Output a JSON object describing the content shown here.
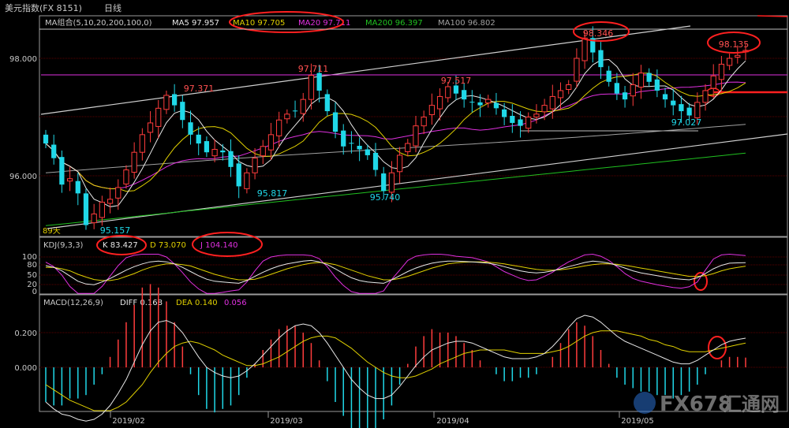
{
  "window": {
    "title": "美元指数(FX 8151)",
    "period": "日线"
  },
  "colors": {
    "background": "#000000",
    "grid": "#5a0000",
    "axis": "#9a9a9a",
    "up": "#ff3c3c",
    "down": "#20d8e8",
    "ma5": "#e8e8e8",
    "ma10": "#e0d000",
    "ma20": "#e030e0",
    "ma200": "#20c020",
    "ma100": "#a0a0a0",
    "k": "#e8e8e8",
    "d": "#e0d000",
    "j": "#e030e0",
    "annotation": "#ff2020",
    "label_red": "#ff5050",
    "label_cyan": "#20d8e8"
  },
  "main_panel": {
    "legend": {
      "title": "MA组合(5,10,20,200,100,0)",
      "ma5": "MA5 97.957",
      "ma10": "MA10 97.705",
      "ma20": "MA20 97.711",
      "ma200": "MA200 96.397",
      "ma100": "MA100 96.802"
    },
    "y_ticks": [
      "98.000",
      "96.000"
    ],
    "corner_label": "89天",
    "price_labels": [
      {
        "text": "97.371",
        "color": "red"
      },
      {
        "text": "97.711",
        "color": "red"
      },
      {
        "text": "97.517",
        "color": "red"
      },
      {
        "text": "98.346",
        "color": "red"
      },
      {
        "text": "98.135",
        "color": "red"
      },
      {
        "text": "95.817",
        "color": "cyan"
      },
      {
        "text": "95.740",
        "color": "cyan"
      },
      {
        "text": "97.027",
        "color": "cyan"
      },
      {
        "text": "95.157",
        "color": "cyan"
      }
    ]
  },
  "kdj_panel": {
    "legend": {
      "title": "KDJ(9,3,3)",
      "k": "K 83.427",
      "d": "D 73.070",
      "j": "J 104.140"
    },
    "y_ticks": [
      "100",
      "80",
      "50",
      "20",
      "0"
    ]
  },
  "macd_panel": {
    "legend": {
      "title": "MACD(12,26,9)",
      "diff": "DIFF 0.168",
      "dea": "DEA 0.140",
      "macd": "0.056"
    },
    "y_ticks": [
      "0.200",
      "0.000"
    ]
  },
  "x_axis": {
    "labels": [
      "2019/02",
      "2019/03",
      "2019/04",
      "2019/05"
    ]
  },
  "watermark": {
    "text": "FX678",
    "text2": "汇通网"
  },
  "chart_data": {
    "type": "candlestick",
    "title": "美元指数(FX 8151) 日线",
    "ylim": [
      95.0,
      98.6
    ],
    "x": {
      "start": "2019-01-10",
      "end": "2019-05-16",
      "labels": [
        "2019/02",
        "2019/03",
        "2019/04",
        "2019/05"
      ]
    },
    "close": [
      96.55,
      96.3,
      95.85,
      95.95,
      95.7,
      95.16,
      95.35,
      95.55,
      95.6,
      95.8,
      96.1,
      96.4,
      96.7,
      96.9,
      97.15,
      97.37,
      97.2,
      96.95,
      96.7,
      96.55,
      96.4,
      96.45,
      96.4,
      96.15,
      95.82,
      96.05,
      96.3,
      96.5,
      96.7,
      96.95,
      97.05,
      97.1,
      97.3,
      97.71,
      97.45,
      97.1,
      96.75,
      96.5,
      96.55,
      96.45,
      96.35,
      96.1,
      95.74,
      96.05,
      96.35,
      96.55,
      96.85,
      97.0,
      97.2,
      97.35,
      97.517,
      97.4,
      97.3,
      97.25,
      97.2,
      97.3,
      97.15,
      97.0,
      96.9,
      96.85,
      97.0,
      97.05,
      97.2,
      97.35,
      97.45,
      97.55,
      98.0,
      98.346,
      98.1,
      97.85,
      97.6,
      97.4,
      97.3,
      97.55,
      97.75,
      97.6,
      97.45,
      97.3,
      97.2,
      97.1,
      97.027,
      97.25,
      97.45,
      97.7,
      97.9,
      98.0,
      98.05,
      98.135
    ],
    "kdj": {
      "k": [
        75,
        70,
        60,
        45,
        30,
        22,
        20,
        28,
        38,
        50,
        62,
        72,
        80,
        86,
        88,
        86,
        80,
        70,
        58,
        46,
        36,
        30,
        28,
        26,
        24,
        32,
        44,
        56,
        66,
        74,
        80,
        84,
        88,
        90,
        86,
        78,
        66,
        52,
        40,
        32,
        28,
        26,
        24,
        34,
        46,
        58,
        68,
        76,
        82,
        86,
        88,
        88,
        87,
        86,
        84,
        82,
        78,
        72,
        66,
        60,
        56,
        54,
        56,
        60,
        66,
        72,
        78,
        84,
        88,
        86,
        82,
        76,
        68,
        60,
        54,
        50,
        46,
        42,
        38,
        36,
        34,
        40,
        52,
        66,
        76,
        82,
        83,
        83.427
      ],
      "d": [
        70,
        70,
        66,
        60,
        50,
        42,
        35,
        32,
        32,
        36,
        44,
        52,
        62,
        70,
        76,
        80,
        80,
        78,
        74,
        66,
        58,
        50,
        44,
        38,
        34,
        34,
        36,
        42,
        50,
        58,
        66,
        72,
        78,
        82,
        84,
        82,
        78,
        70,
        62,
        54,
        46,
        40,
        34,
        34,
        38,
        44,
        52,
        60,
        68,
        74,
        80,
        83,
        85,
        86,
        86,
        85,
        83,
        80,
        76,
        72,
        68,
        64,
        62,
        62,
        63,
        66,
        70,
        74,
        78,
        80,
        80,
        79,
        76,
        72,
        68,
        64,
        60,
        56,
        52,
        48,
        44,
        44,
        46,
        52,
        60,
        66,
        70,
        73.07
      ],
      "j": [
        85,
        72,
        48,
        15,
        -5,
        -10,
        -8,
        15,
        45,
        75,
        98,
        105,
        108,
        110,
        108,
        100,
        80,
        55,
        28,
        8,
        -5,
        -5,
        -2,
        2,
        5,
        28,
        60,
        88,
        100,
        104,
        106,
        106,
        106,
        104,
        95,
        72,
        42,
        18,
        0,
        -8,
        -8,
        -5,
        2,
        35,
        62,
        90,
        102,
        106,
        108,
        108,
        106,
        102,
        100,
        98,
        92,
        86,
        72,
        58,
        48,
        38,
        32,
        34,
        44,
        56,
        72,
        86,
        96,
        106,
        108,
        102,
        90,
        72,
        52,
        38,
        30,
        25,
        20,
        16,
        12,
        10,
        14,
        28,
        62,
        94,
        106,
        108,
        106,
        104.14
      ]
    },
    "macd": {
      "diff": [
        -0.2,
        -0.24,
        -0.27,
        -0.28,
        -0.3,
        -0.31,
        -0.3,
        -0.27,
        -0.22,
        -0.15,
        -0.07,
        0.03,
        0.13,
        0.21,
        0.26,
        0.27,
        0.25,
        0.2,
        0.13,
        0.06,
        0.0,
        -0.03,
        -0.05,
        -0.06,
        -0.05,
        -0.02,
        0.02,
        0.07,
        0.12,
        0.17,
        0.21,
        0.24,
        0.25,
        0.24,
        0.2,
        0.14,
        0.07,
        0.0,
        -0.07,
        -0.12,
        -0.16,
        -0.18,
        -0.18,
        -0.16,
        -0.11,
        -0.05,
        0.01,
        0.06,
        0.1,
        0.12,
        0.14,
        0.15,
        0.15,
        0.14,
        0.12,
        0.1,
        0.08,
        0.06,
        0.05,
        0.05,
        0.05,
        0.06,
        0.08,
        0.12,
        0.17,
        0.23,
        0.28,
        0.3,
        0.29,
        0.26,
        0.22,
        0.18,
        0.15,
        0.13,
        0.11,
        0.09,
        0.07,
        0.05,
        0.03,
        0.02,
        0.02,
        0.04,
        0.07,
        0.1,
        0.13,
        0.15,
        0.16,
        0.168
      ],
      "dea": [
        -0.1,
        -0.13,
        -0.16,
        -0.19,
        -0.21,
        -0.23,
        -0.25,
        -0.25,
        -0.25,
        -0.23,
        -0.2,
        -0.15,
        -0.1,
        -0.03,
        0.03,
        0.08,
        0.12,
        0.14,
        0.15,
        0.14,
        0.12,
        0.1,
        0.07,
        0.05,
        0.03,
        0.01,
        0.01,
        0.02,
        0.04,
        0.06,
        0.09,
        0.12,
        0.15,
        0.17,
        0.18,
        0.18,
        0.17,
        0.14,
        0.11,
        0.07,
        0.03,
        0.0,
        -0.03,
        -0.05,
        -0.06,
        -0.06,
        -0.05,
        -0.03,
        -0.01,
        0.02,
        0.04,
        0.06,
        0.08,
        0.09,
        0.1,
        0.1,
        0.1,
        0.1,
        0.09,
        0.08,
        0.08,
        0.08,
        0.08,
        0.09,
        0.1,
        0.12,
        0.15,
        0.18,
        0.2,
        0.21,
        0.21,
        0.21,
        0.2,
        0.19,
        0.18,
        0.16,
        0.15,
        0.13,
        0.12,
        0.1,
        0.09,
        0.09,
        0.09,
        0.1,
        0.11,
        0.12,
        0.13,
        0.14
      ]
    }
  }
}
